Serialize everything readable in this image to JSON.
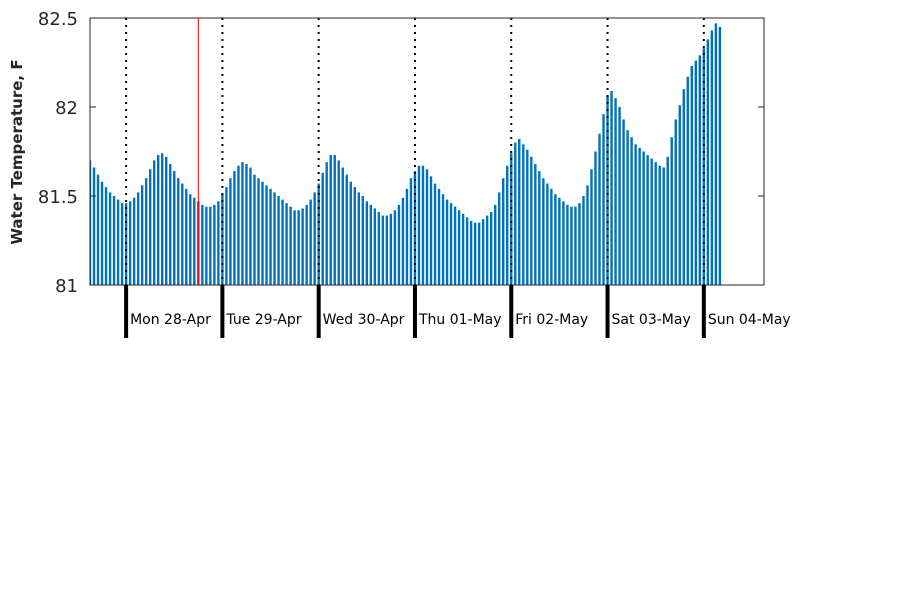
{
  "chart_data": {
    "type": "bar",
    "ylabel": "Water Temperature, F",
    "xlabel": "",
    "title": "",
    "ylim": [
      81,
      82.5
    ],
    "yticks": [
      "81",
      "81.5",
      "82",
      "82.5"
    ],
    "ytick_values": [
      81,
      81.5,
      82,
      82.5
    ],
    "x_range_days": [
      -0.375,
      6.625
    ],
    "bar_interval_hours": 1,
    "bar_color": "#0072bd",
    "marker_color": "#ff0000",
    "marker_x_day": 0.75,
    "grid": false,
    "day_boundaries": [
      0,
      1,
      2,
      3,
      4,
      5,
      6
    ],
    "day_labels": [
      "Mon 28-Apr",
      "Tue 29-Apr",
      "Wed 30-Apr",
      "Thu 01-May",
      "Fri 02-May",
      "Sat 03-May",
      "Sun 04-May"
    ],
    "values": [
      81.7,
      81.66,
      81.62,
      81.58,
      81.55,
      81.52,
      81.5,
      81.48,
      81.46,
      81.46,
      81.47,
      81.49,
      81.52,
      81.56,
      81.6,
      81.65,
      81.7,
      81.73,
      81.74,
      81.72,
      81.68,
      81.64,
      81.6,
      81.57,
      81.54,
      81.51,
      81.49,
      81.47,
      81.45,
      81.44,
      81.44,
      81.45,
      81.47,
      81.51,
      81.55,
      81.6,
      81.64,
      81.67,
      81.69,
      81.68,
      81.66,
      81.62,
      81.6,
      81.58,
      81.56,
      81.54,
      81.52,
      81.5,
      81.48,
      81.46,
      81.44,
      81.42,
      81.42,
      81.43,
      81.45,
      81.48,
      81.52,
      81.57,
      81.63,
      81.69,
      81.73,
      81.73,
      81.7,
      81.66,
      81.62,
      81.58,
      81.55,
      81.52,
      81.5,
      81.47,
      81.45,
      81.43,
      81.41,
      81.39,
      81.39,
      81.4,
      81.42,
      81.45,
      81.49,
      81.54,
      81.6,
      81.64,
      81.67,
      81.67,
      81.65,
      81.61,
      81.57,
      81.54,
      81.51,
      81.48,
      81.46,
      81.44,
      81.42,
      81.4,
      81.38,
      81.36,
      81.35,
      81.35,
      81.37,
      81.39,
      81.41,
      81.45,
      81.52,
      81.6,
      81.67,
      81.74,
      81.8,
      81.82,
      81.79,
      81.76,
      81.72,
      81.68,
      81.64,
      81.6,
      81.57,
      81.54,
      81.51,
      81.49,
      81.47,
      81.45,
      81.44,
      81.44,
      81.46,
      81.5,
      81.56,
      81.65,
      81.75,
      81.85,
      81.96,
      82.06,
      82.09,
      82.05,
      82.0,
      81.93,
      81.87,
      81.83,
      81.79,
      81.77,
      81.75,
      81.73,
      81.71,
      81.69,
      81.67,
      81.66,
      81.72,
      81.83,
      81.93,
      82.01,
      82.1,
      82.17,
      82.23,
      82.26,
      82.29,
      82.33,
      82.38,
      82.43,
      82.47,
      82.45
    ]
  }
}
